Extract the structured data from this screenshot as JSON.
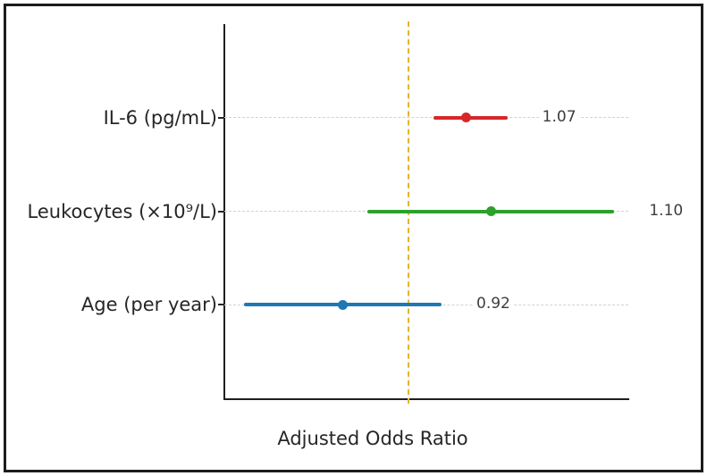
{
  "figure": {
    "background_color": "#ffffff",
    "border_color": "#1c1c1c"
  },
  "chart_data": {
    "type": "forest_plot",
    "title": "",
    "xlabel": "Adjusted Odds Ratio",
    "ylabel": "",
    "x_min": 0.776,
    "x_max": 1.267,
    "grid": "horizontal dashed gridlines on",
    "legend": "none",
    "x_tick_labels": "none shown",
    "reference_line": {
      "value": 1.0,
      "color": "#e2b42f",
      "style": "dashed"
    },
    "rows": [
      {
        "label": "IL-6 (pg/mL)",
        "or": 1.07,
        "ci_low": 1.03,
        "ci_high": 1.12,
        "value_label": "1.07",
        "color": "#d62728"
      },
      {
        "label": "Leukocytes (×10⁹/L)",
        "or": 1.1,
        "ci_low": 0.95,
        "ci_high": 1.25,
        "value_label": "1.10",
        "color": "#2ca02c"
      },
      {
        "label": "Age (per year)",
        "or": 0.92,
        "ci_low": 0.8,
        "ci_high": 1.04,
        "value_label": "0.92",
        "color": "#1f77b4"
      }
    ],
    "grid_color": "#d2d2d2",
    "axis_color": "#1e1e1e",
    "text_color": "#262626"
  }
}
